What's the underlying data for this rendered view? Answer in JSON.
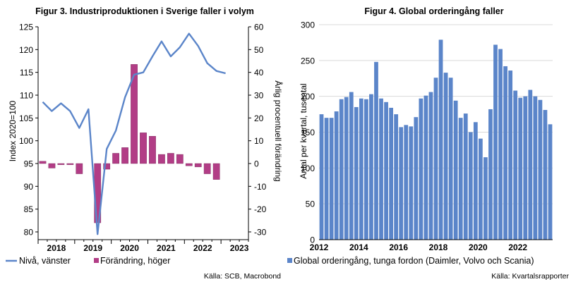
{
  "chart_data": [
    {
      "type": "bar+line",
      "title": "Figur 3. Industriproduktionen i Sverige faller i volym",
      "ylabel_left": "Index 2020=100",
      "ylabel_right": "Årlig procentuell förändring",
      "ylim_left": [
        80,
        125
      ],
      "yticks_left": [
        "80",
        "85",
        "90",
        "95",
        "100",
        "105",
        "110",
        "115",
        "120",
        "125"
      ],
      "ylim_right": [
        -30,
        60
      ],
      "yticks_right": [
        "-30",
        "-20",
        "-10",
        "0",
        "10",
        "20",
        "30",
        "40",
        "50",
        "60"
      ],
      "x_year_labels": [
        "2018",
        "2019",
        "2020",
        "2021",
        "2022",
        "2023"
      ],
      "x_quarters": [
        "2018Q1",
        "2018Q2",
        "2018Q3",
        "2018Q4",
        "2019Q1",
        "2019Q2",
        "2019Q3",
        "2019Q4",
        "2020Q1",
        "2020Q2",
        "2020Q3",
        "2020Q4",
        "2021Q1",
        "2021Q2",
        "2021Q3",
        "2021Q4",
        "2022Q1",
        "2022Q2",
        "2022Q3",
        "2022Q4",
        "2023Q1",
        "2023Q2",
        "2023Q3"
      ],
      "series": [
        {
          "name": "Nivå, vänster",
          "axis": "left",
          "kind": "line",
          "color": "#5b85c9",
          "values": [
            108.5,
            106.5,
            108.2,
            106.5,
            102.8,
            106.9,
            79.5,
            98.2,
            102.2,
            109.5,
            114.5,
            115.0,
            118.5,
            121.8,
            118.5,
            120.5,
            123.5,
            120.8,
            117.0,
            115.3,
            114.8,
            null,
            null
          ]
        },
        {
          "name": "Förändring, höger",
          "axis": "right",
          "kind": "bar",
          "color": "#b23d86",
          "values": [
            1.0,
            -2.0,
            -0.5,
            -0.5,
            -4.5,
            null,
            -26.0,
            -2.5,
            4.5,
            7.0,
            43.5,
            13.5,
            12.0,
            4.0,
            4.5,
            4.0,
            -1.0,
            -1.5,
            -4.5,
            -7.0,
            null,
            null,
            null
          ]
        }
      ],
      "legend": [
        "Nivå, vänster",
        "Förändring, höger"
      ],
      "source": "Källa: SCB, Macrobond"
    },
    {
      "type": "bar",
      "title": "Figur 4. Global orderingång faller",
      "ylabel": "Antal per kvartal, tusental",
      "ylim": [
        0,
        300
      ],
      "yticks": [
        "0",
        "50",
        "100",
        "150",
        "200",
        "250",
        "300"
      ],
      "x_year_labels": [
        "2012",
        "2014",
        "2016",
        "2018",
        "2020",
        "2022"
      ],
      "series": [
        {
          "name": "Global orderingång, tunga fordon (Daimler, Volvo och Scania)",
          "color": "#5b85c9",
          "values": [
            175,
            170,
            170,
            179,
            196,
            199,
            206,
            185,
            197,
            196,
            203,
            248,
            197,
            192,
            184,
            175,
            157,
            160,
            158,
            171,
            197,
            201,
            206,
            226,
            279,
            233,
            226,
            194,
            170,
            176,
            150,
            164,
            141,
            115,
            182,
            272,
            266,
            242,
            236,
            208,
            198,
            200,
            209,
            200,
            195,
            181,
            161
          ]
        }
      ],
      "legend": [
        "Global orderingång, tunga fordon (Daimler, Volvo och Scania)"
      ],
      "source": "Källa: Kvartalsrapporter"
    }
  ]
}
